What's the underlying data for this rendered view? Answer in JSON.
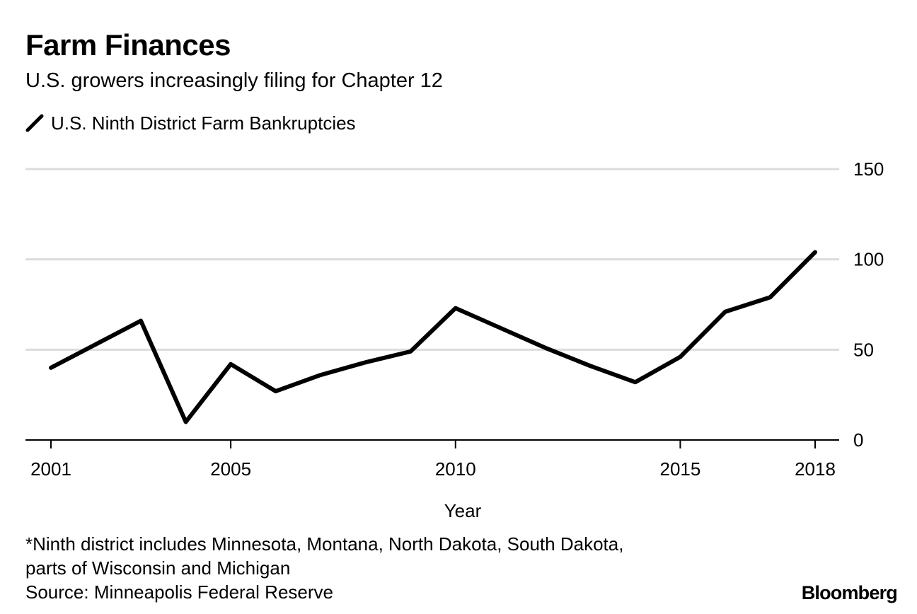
{
  "header": {
    "title": "Farm Finances",
    "subtitle": "U.S. growers increasingly filing for Chapter 12"
  },
  "legend": {
    "label": "U.S. Ninth District Farm Bankruptcies",
    "icon": "line-swatch-icon"
  },
  "chart_data": {
    "type": "line",
    "title": "Farm Finances",
    "subtitle": "U.S. growers increasingly filing for Chapter 12",
    "xlabel": "Year",
    "ylabel": "",
    "x": [
      2001,
      2002,
      2003,
      2004,
      2005,
      2006,
      2007,
      2008,
      2009,
      2010,
      2011,
      2012,
      2013,
      2014,
      2015,
      2016,
      2017,
      2018
    ],
    "series": [
      {
        "name": "U.S. Ninth District Farm Bankruptcies",
        "values": [
          40,
          53,
          66,
          10,
          42,
          27,
          36,
          43,
          49,
          73,
          62,
          51,
          41,
          32,
          46,
          71,
          79,
          104
        ]
      }
    ],
    "xlim": [
      2001,
      2018
    ],
    "ylim": [
      0,
      150
    ],
    "x_ticks": [
      "2001",
      "2005",
      "2010",
      "2015",
      "2018"
    ],
    "y_ticks": [
      "0",
      "50",
      "100",
      "150"
    ],
    "grid": true,
    "legend_position": "top-left",
    "line_color": "#000000",
    "grid_color": "#dcdcdc"
  },
  "footnote": {
    "lines": [
      "*Ninth district includes Minnesota, Montana, North Dakota, South Dakota,",
      "parts of Wisconsin and Michigan",
      "Source: Minneapolis Federal Reserve"
    ]
  },
  "brand": {
    "name": "Bloomberg"
  }
}
